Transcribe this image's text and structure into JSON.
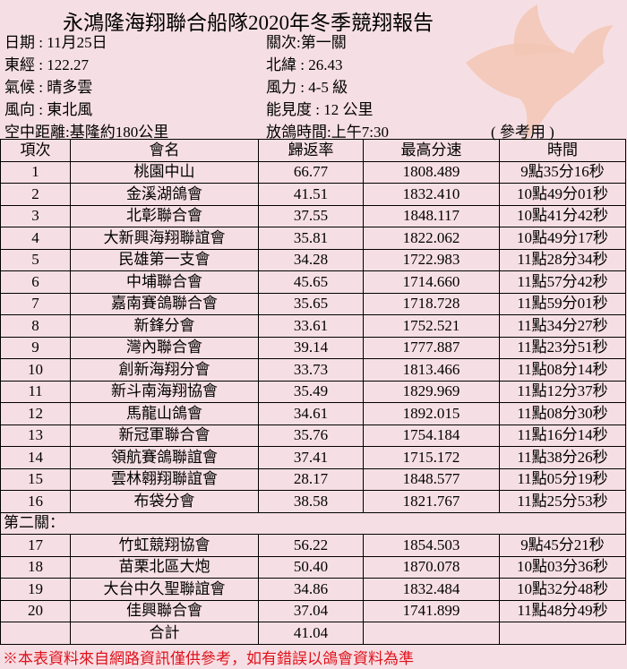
{
  "header": {
    "title": "永鴻隆海翔聯合船隊2020年冬季競翔報告",
    "info": [
      [
        "日期 : 11月25日",
        "關次:第一關"
      ],
      [
        "東經 : 122.27",
        "北緯 : 26.43"
      ],
      [
        "氣候 : 晴多雲",
        "風力 : 4-5 級"
      ],
      [
        "風向 : 東北風",
        "能見度 : 12 公里"
      ],
      [
        "空中距離:基隆約180公里",
        "放鴿時間:上午7:30"
      ]
    ],
    "note": "( 參考用 )"
  },
  "table": {
    "columns": [
      "項次",
      "會名",
      "歸返率",
      "最高分速",
      "時間"
    ],
    "sections": [
      {
        "rows": [
          [
            "1",
            "桃園中山",
            "66.77",
            "1808.489",
            "9點35分16秒"
          ],
          [
            "2",
            "金溪湖鴿會",
            "41.51",
            "1832.410",
            "10點49分01秒"
          ],
          [
            "3",
            "北彰聯合會",
            "37.55",
            "1848.117",
            "10點41分42秒"
          ],
          [
            "4",
            "大新興海翔聯誼會",
            "35.81",
            "1822.062",
            "10點49分17秒"
          ],
          [
            "5",
            "民雄第一支會",
            "34.28",
            "1722.983",
            "11點28分34秒"
          ],
          [
            "6",
            "中埔聯合會",
            "45.65",
            "1714.660",
            "11點57分42秒"
          ],
          [
            "7",
            "嘉南賽鴿聯合會",
            "35.65",
            "1718.728",
            "11點59分01秒"
          ],
          [
            "8",
            "新鋒分會",
            "33.61",
            "1752.521",
            "11點34分27秒"
          ],
          [
            "9",
            "灣內聯合會",
            "39.14",
            "1777.887",
            "11點23分51秒"
          ],
          [
            "10",
            "創新海翔分會",
            "33.73",
            "1813.466",
            "11點08分14秒"
          ],
          [
            "11",
            "新斗南海翔協會",
            "35.49",
            "1829.969",
            "11點12分37秒"
          ],
          [
            "12",
            "馬龍山鴿會",
            "34.61",
            "1892.015",
            "11點08分30秒"
          ],
          [
            "13",
            "新冠軍聯合會",
            "35.76",
            "1754.184",
            "11點16分14秒"
          ],
          [
            "14",
            "領航賽鴿聯誼會",
            "37.41",
            "1715.172",
            "11點38分26秒"
          ],
          [
            "15",
            "雲林翱翔聯誼會",
            "28.17",
            "1848.577",
            "11點05分19秒"
          ],
          [
            "16",
            "布袋分會",
            "38.58",
            "1821.767",
            "11點25分53秒"
          ]
        ]
      },
      {
        "title": "第二關：",
        "rows": [
          [
            "17",
            "竹虹競翔協會",
            "56.22",
            "1854.503",
            "9點45分21秒"
          ],
          [
            "18",
            "苗栗北區大炮",
            "50.40",
            "1870.078",
            "10點03分36秒"
          ],
          [
            "19",
            "大台中久聖聯誼會",
            "34.86",
            "1832.484",
            "10點32分48秒"
          ],
          [
            "20",
            "佳興聯合會",
            "37.04",
            "1741.899",
            "11點48分49秒"
          ]
        ]
      }
    ],
    "total": {
      "label": "合計",
      "value": "41.04"
    }
  },
  "footnote": "※本表資料來自網路資訊僅供參考，如有錯誤以鴿會資料為準"
}
